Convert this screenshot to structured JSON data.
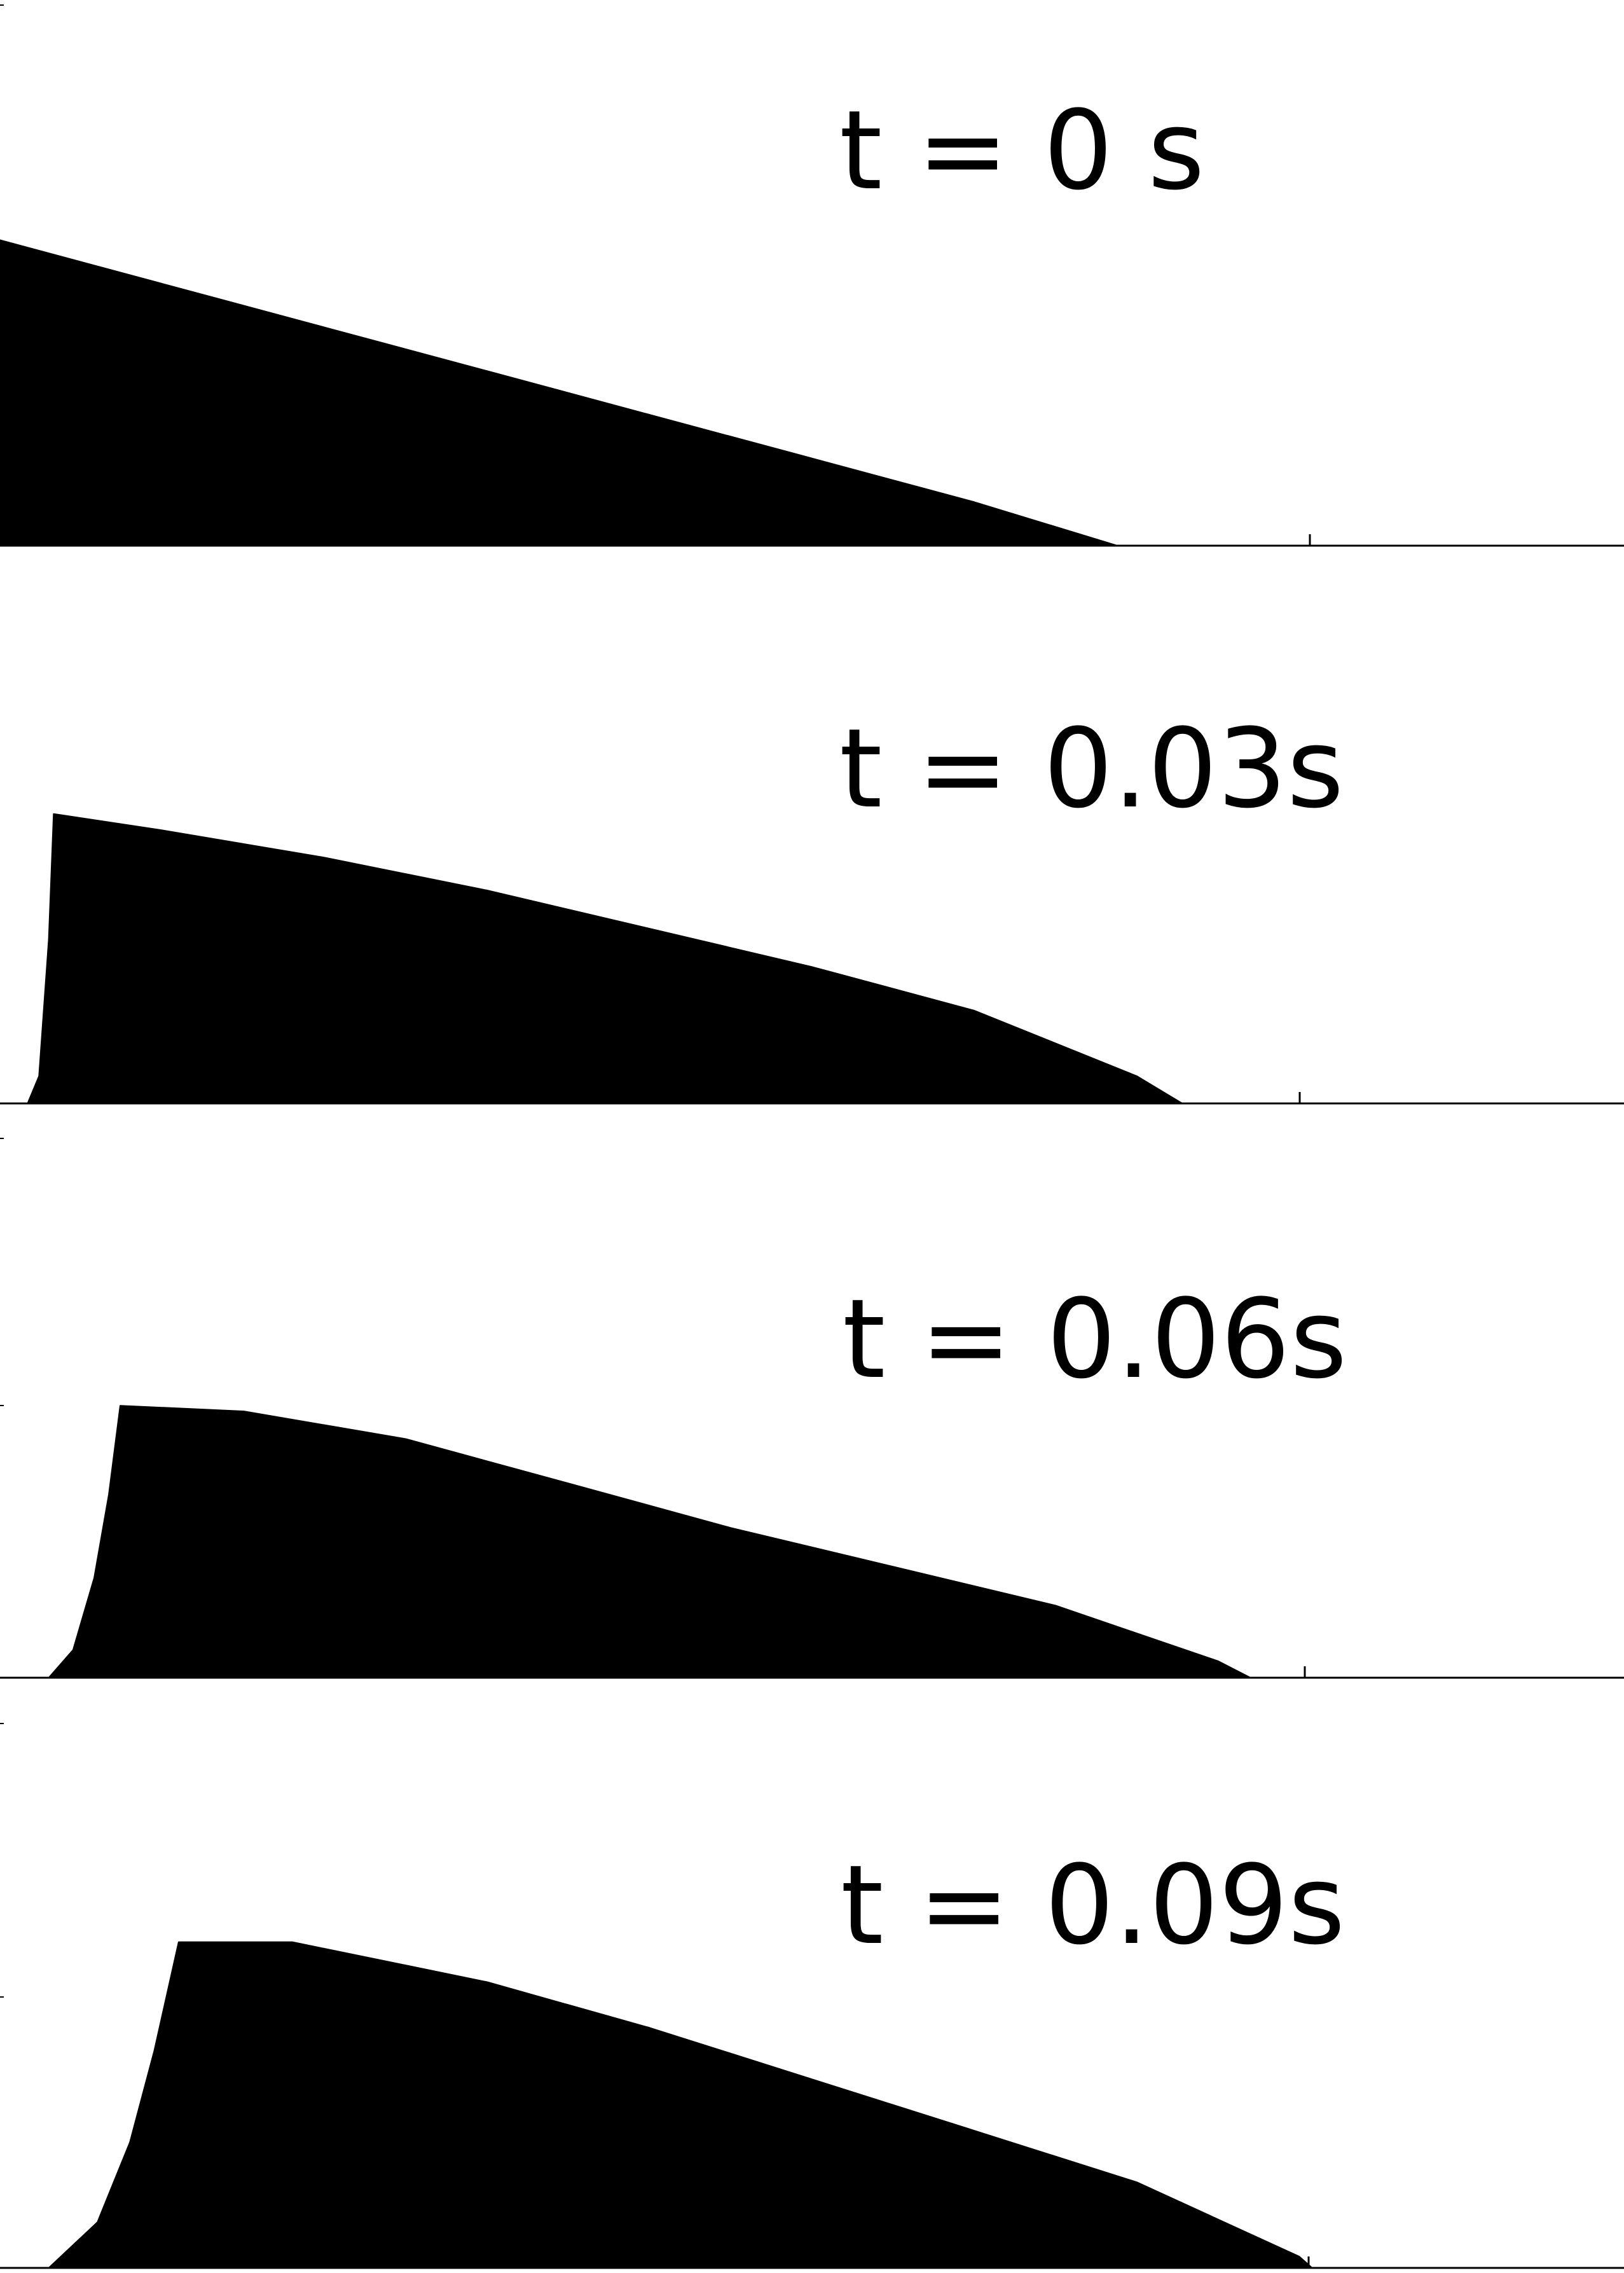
{
  "chart_data": [
    {
      "type": "area",
      "annotation": "t = 0 s",
      "color": "#000000",
      "xlim": [
        0,
        1
      ],
      "ylim": [
        0,
        1
      ],
      "x": [
        0,
        0.1,
        0.2,
        0.3,
        0.4,
        0.5,
        0.6,
        0.688
      ],
      "y": [
        0.56,
        0.48,
        0.4,
        0.32,
        0.24,
        0.16,
        0.08,
        0.0
      ]
    },
    {
      "type": "area",
      "annotation": "t = 0.03s",
      "color": "#000000",
      "xlim": [
        0,
        1
      ],
      "ylim": [
        0,
        1
      ],
      "x": [
        0.017,
        0.024,
        0.03,
        0.033,
        0.1,
        0.2,
        0.3,
        0.4,
        0.5,
        0.6,
        0.7,
        0.728
      ],
      "y": [
        0.0,
        0.05,
        0.3,
        0.53,
        0.5,
        0.45,
        0.39,
        0.32,
        0.25,
        0.17,
        0.05,
        0.0
      ]
    },
    {
      "type": "area",
      "annotation": "t = 0.06s",
      "color": "#000000",
      "xlim": [
        0,
        1
      ],
      "ylim": [
        0,
        1
      ],
      "x": [
        0.03,
        0.045,
        0.058,
        0.067,
        0.074,
        0.15,
        0.25,
        0.35,
        0.45,
        0.55,
        0.65,
        0.75,
        0.77
      ],
      "y": [
        0.0,
        0.05,
        0.18,
        0.33,
        0.49,
        0.48,
        0.43,
        0.35,
        0.27,
        0.2,
        0.13,
        0.03,
        0.0
      ]
    },
    {
      "type": "area",
      "annotation": "t = 0.09s",
      "color": "#000000",
      "xlim": [
        0,
        1
      ],
      "ylim": [
        0,
        1
      ],
      "x": [
        0.03,
        0.06,
        0.08,
        0.095,
        0.11,
        0.18,
        0.3,
        0.4,
        0.5,
        0.6,
        0.7,
        0.8,
        0.808
      ],
      "y": [
        0.0,
        0.08,
        0.22,
        0.38,
        0.57,
        0.57,
        0.5,
        0.42,
        0.33,
        0.24,
        0.15,
        0.02,
        0.0
      ]
    }
  ]
}
